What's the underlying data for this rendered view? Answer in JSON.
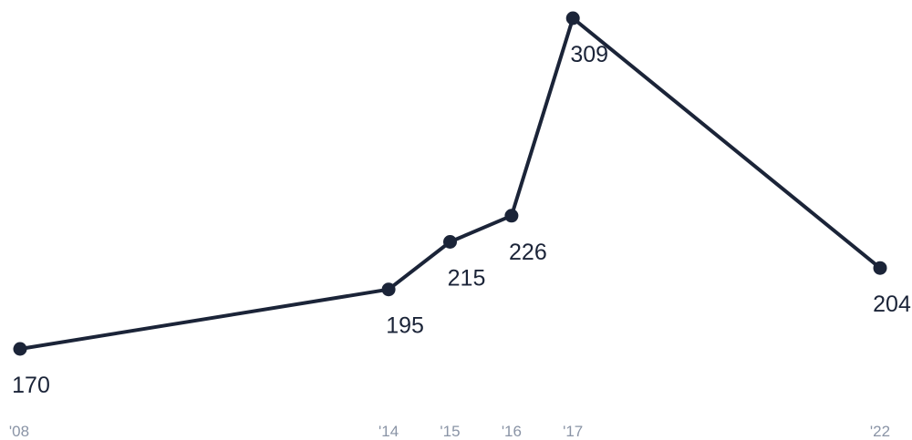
{
  "chart_data": {
    "type": "line",
    "title": "",
    "xlabel": "",
    "ylabel": "",
    "categories": [
      "'08",
      "'14",
      "'15",
      "'16",
      "'17",
      "'22"
    ],
    "x": [
      2008,
      2014,
      2015,
      2016,
      2017,
      2022
    ],
    "series": [
      {
        "values": [
          170,
          195,
          215,
          226,
          309,
          204
        ]
      }
    ],
    "data_labels": [
      "170",
      "195",
      "215",
      "226",
      "309",
      "204"
    ],
    "ylim": [
      170,
      309
    ],
    "grid": false,
    "legend": "none",
    "colors": {
      "line": "#1b2438",
      "label_text": "#1b2438",
      "tick_text": "#8a94a6",
      "background": "#ffffff"
    }
  }
}
